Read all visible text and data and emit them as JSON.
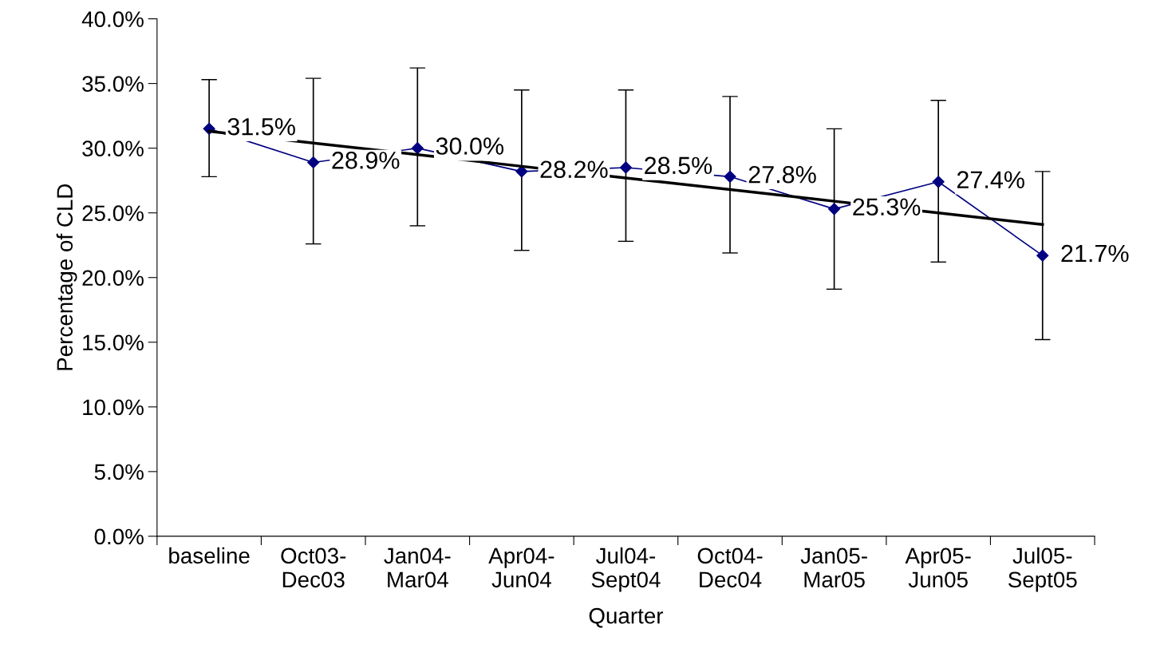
{
  "chart_data": {
    "type": "line",
    "xlabel": "Quarter",
    "ylabel": "Percentage of CLD",
    "categories": [
      "baseline",
      "Oct03-\nDec03",
      "Jan04-\nMar04",
      "Apr04-\nJun04",
      "Jul04-\nSept04",
      "Oct04-\nDec04",
      "Jan05-\nMar05",
      "Apr05-\nJun05",
      "Jul05-\nSept05"
    ],
    "ylim": [
      0,
      40
    ],
    "yticks": [
      {
        "value": 0,
        "label": "0.0%"
      },
      {
        "value": 5,
        "label": "5.0%"
      },
      {
        "value": 10,
        "label": "10.0%"
      },
      {
        "value": 15,
        "label": "15.0%"
      },
      {
        "value": 20,
        "label": "20.0%"
      },
      {
        "value": 25,
        "label": "25.0%"
      },
      {
        "value": 30,
        "label": "30.0%"
      },
      {
        "value": 35,
        "label": "35.0%"
      },
      {
        "value": 40,
        "label": "40.0%"
      }
    ],
    "grid": false,
    "legend": false,
    "series": [
      {
        "color": "#000080",
        "marker": "diamond",
        "values": [
          31.5,
          28.9,
          30.0,
          28.2,
          28.5,
          27.8,
          25.3,
          27.4,
          21.7
        ],
        "value_labels": [
          "31.5%",
          "28.9%",
          "30.0%",
          "28.2%",
          "28.5%",
          "27.8%",
          "25.3%",
          "27.4%",
          "21.7%"
        ],
        "errors": [
          [
            27.8,
            35.3
          ],
          [
            22.6,
            35.4
          ],
          [
            24.0,
            36.2
          ],
          [
            22.1,
            34.5
          ],
          [
            22.8,
            34.5
          ],
          [
            21.9,
            34.0
          ],
          [
            19.1,
            31.5
          ],
          [
            21.2,
            33.7
          ],
          [
            15.2,
            28.2
          ]
        ]
      },
      {
        "color": "#000000",
        "marker": "none",
        "values": [
          31.3,
          30.4,
          29.5,
          28.6,
          27.7,
          26.8,
          25.9,
          25.0,
          24.1
        ]
      }
    ]
  }
}
